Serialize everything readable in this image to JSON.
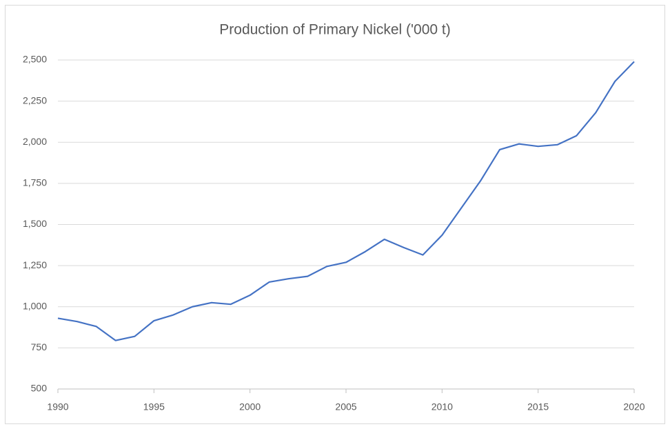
{
  "chart_data": {
    "type": "line",
    "title": "Production of Primary Nickel ('000 t)",
    "x": [
      1990,
      1991,
      1992,
      1993,
      1994,
      1995,
      1996,
      1997,
      1998,
      1999,
      2000,
      2001,
      2002,
      2003,
      2004,
      2005,
      2006,
      2007,
      2008,
      2009,
      2010,
      2011,
      2012,
      2013,
      2014,
      2015,
      2016,
      2017,
      2018,
      2019,
      2020
    ],
    "series": [
      {
        "name": "Production of Primary Nickel ('000 t)",
        "color": "#4472c4",
        "values": [
          930,
          910,
          880,
          795,
          820,
          915,
          950,
          1000,
          1025,
          1015,
          1070,
          1150,
          1170,
          1185,
          1245,
          1270,
          1335,
          1410,
          1360,
          1315,
          1435,
          1600,
          1765,
          1955,
          1990,
          1975,
          1985,
          2040,
          2180,
          2370,
          2490
        ]
      }
    ],
    "xlim": [
      1990,
      2020
    ],
    "xticks": [
      1990,
      1995,
      2000,
      2005,
      2010,
      2015,
      2020
    ],
    "ylim": [
      500,
      2500
    ],
    "yticks": [
      500,
      750,
      {
        "value": 1000,
        "label": "1,000"
      },
      {
        "value": 1250,
        "label": "1,250"
      },
      {
        "value": 1500,
        "label": "1,500"
      },
      {
        "value": 1750,
        "label": "1,750"
      },
      {
        "value": 2000,
        "label": "2,000"
      },
      {
        "value": 2250,
        "label": "2,250"
      },
      {
        "value": 2500,
        "label": "2,500"
      }
    ],
    "grid": true
  }
}
